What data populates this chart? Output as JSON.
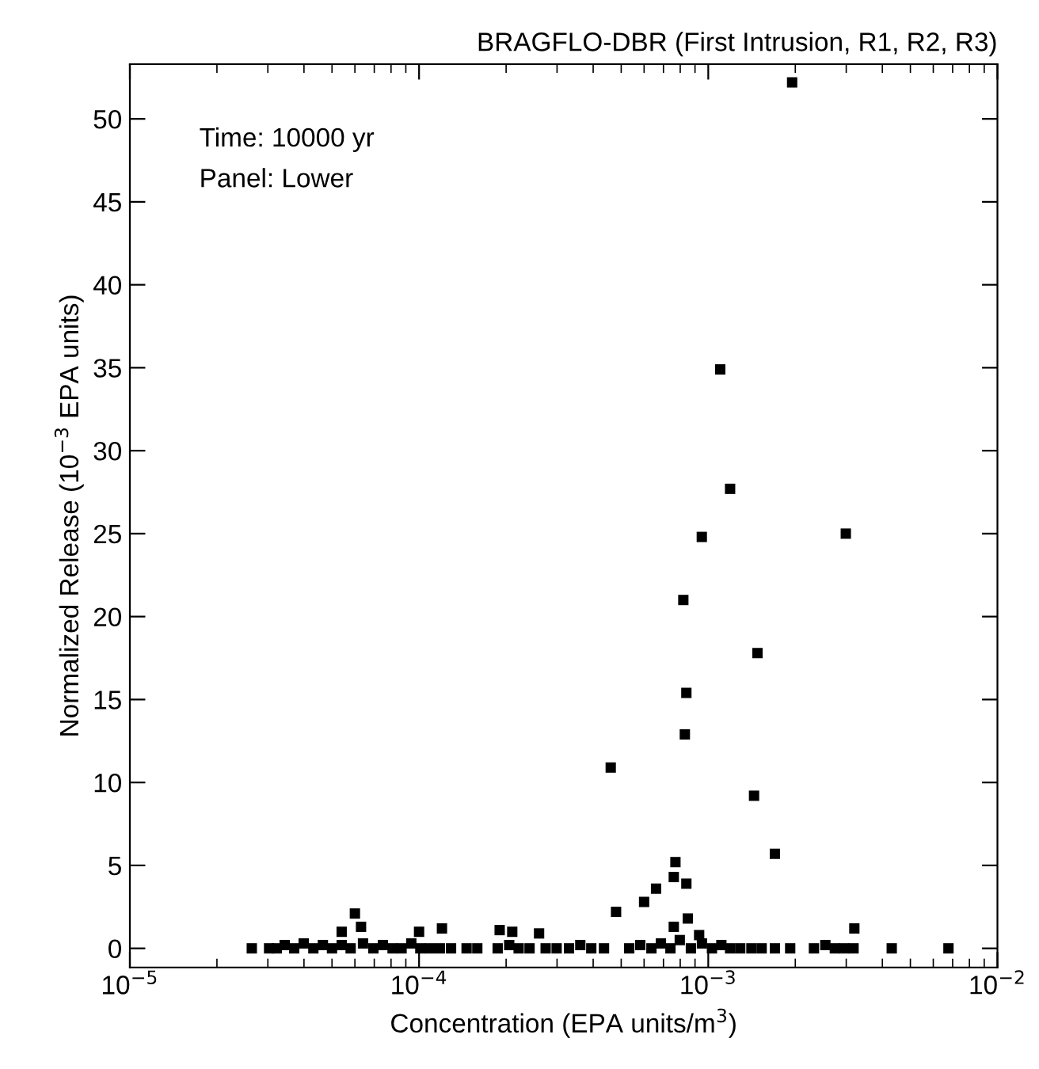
{
  "chart_data": {
    "type": "scatter",
    "title": "BRAGFLO-DBR (First Intrusion, R1, R2, R3)",
    "xlabel": "Concentration (EPA units/m$^{3}$)",
    "ylabel": "Normalized Release (10$^{−3}$ EPA units)",
    "annotations": [
      "Time: 10000 yr",
      "Panel: Lower"
    ],
    "log": "x",
    "marker": "square",
    "xlim": [
      1e-05,
      0.01
    ],
    "ylim": [
      -1.15,
      53.3
    ],
    "xticks": [
      {
        "value": 1e-05,
        "label": "10$^{−5}$"
      },
      {
        "value": 0.0001,
        "label": "10$^{−4}$"
      },
      {
        "value": 0.001,
        "label": "10$^{−3}$"
      },
      {
        "value": 0.01,
        "label": "10$^{−2}$"
      }
    ],
    "yticks": [
      0,
      5,
      10,
      15,
      20,
      25,
      30,
      35,
      40,
      45,
      50
    ],
    "series": [
      {
        "color": "#000000",
        "x": [
          0.00195,
          0.0011,
          0.00119,
          0.00095,
          0.00299,
          0.00082,
          0.00148,
          0.00084,
          0.00083,
          0.00046,
          0.00144,
          0.0017,
          0.00077,
          0.00076,
          0.00084,
          0.00066,
          0.0006,
          0.00048,
          0.00085,
          0.00076,
          0.0032,
          0.00093,
          6e-05,
          6.3e-05,
          5.4e-05,
          0.0001,
          0.00012,
          0.00021,
          0.00026,
          0.00019,
          2.64e-05,
          3.03e-05,
          3.22e-05,
          3.43e-05,
          3.7e-05,
          3.99e-05,
          4.31e-05,
          4.65e-05,
          5e-05,
          5.4e-05,
          5.8e-05,
          6.4e-05,
          6.95e-05,
          7.5e-05,
          8.1e-05,
          8.7e-05,
          9.4e-05,
          0.000101,
          0.000109,
          0.000118,
          0.000129,
          0.000146,
          0.000159,
          0.000187,
          0.000205,
          0.000221,
          0.000241,
          0.000274,
          0.000299,
          0.00033,
          0.000361,
          0.000394,
          0.000436,
          0.000533,
          0.000582,
          0.000636,
          0.000686,
          0.00074,
          0.000797,
          0.000871,
          0.000951,
          0.00103,
          0.00111,
          0.00119,
          0.00129,
          0.00141,
          0.00153,
          0.0017,
          0.00192,
          0.00232,
          0.00254,
          0.00274,
          0.00295,
          0.00318,
          0.00431,
          0.00677
        ],
        "values": [
          52.2,
          34.9,
          27.7,
          24.8,
          25.0,
          21.0,
          17.8,
          15.4,
          12.9,
          10.9,
          9.2,
          5.7,
          5.2,
          4.3,
          3.9,
          3.6,
          2.8,
          2.2,
          1.8,
          1.3,
          1.2,
          0.8,
          2.1,
          1.3,
          1.0,
          1.0,
          1.2,
          1.0,
          0.9,
          1.1,
          0,
          0,
          0,
          0.2,
          0,
          0.3,
          0,
          0.2,
          0,
          0.2,
          0,
          0.3,
          0,
          0.2,
          0,
          0,
          0.3,
          0,
          0,
          0,
          0,
          0,
          0,
          0,
          0.2,
          0,
          0,
          0,
          0,
          0,
          0.2,
          0,
          0,
          0,
          0.2,
          0,
          0.3,
          0,
          0.5,
          0,
          0.3,
          0,
          0.2,
          0,
          0,
          0,
          0,
          0,
          0,
          0,
          0.2,
          0,
          0,
          0,
          0,
          0
        ]
      }
    ]
  }
}
